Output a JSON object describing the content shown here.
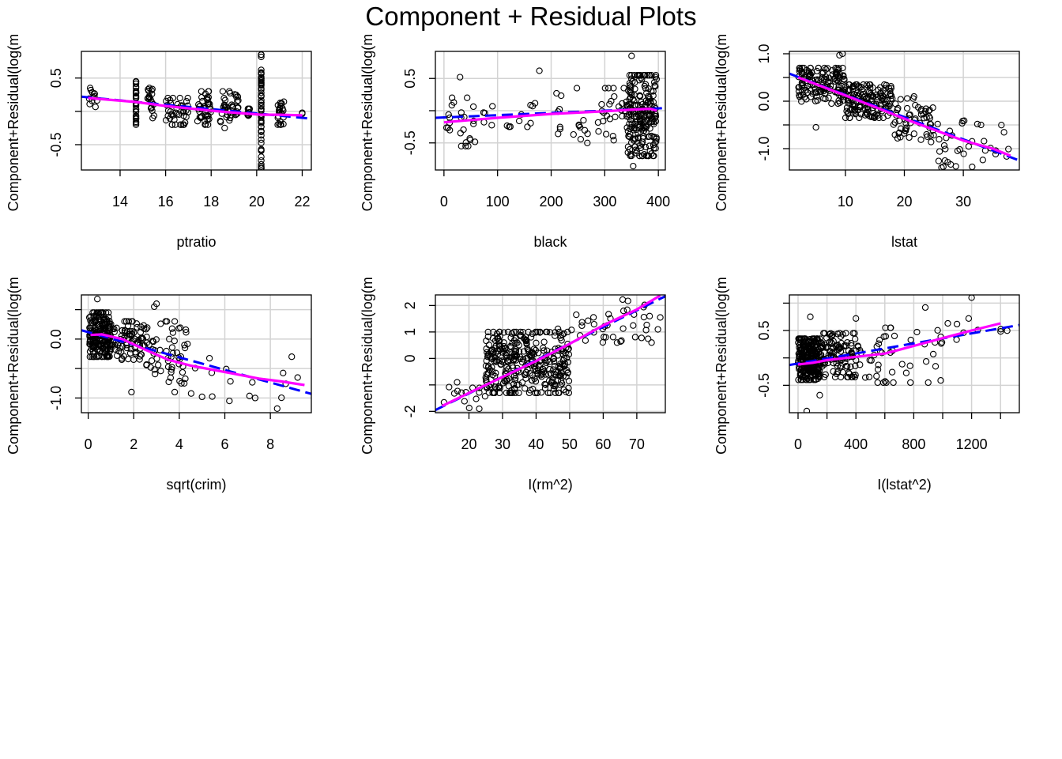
{
  "title": "Component + Residual Plots",
  "chart_data": {
    "type": "scatter",
    "title": "Component + Residual Plots",
    "layout_grid": "2 rows x 3 columns",
    "colors": {
      "points": "#000000",
      "linear_fit": "#0000ff",
      "smooth": "#ff00ff",
      "grid": "#d3d3d3"
    },
    "panels": [
      {
        "id": "ptratio",
        "xlabel": "ptratio",
        "ylabel": "Component+Residual(log(m",
        "xlim": [
          12.3,
          22.4
        ],
        "ylim": [
          -0.88,
          0.9
        ],
        "xticks": [
          14,
          16,
          18,
          20,
          22
        ],
        "xtick_labels": [
          "14",
          "16",
          "18",
          "20",
          "22"
        ],
        "yticks": [
          -0.5,
          0,
          0.5
        ],
        "ytick_labels": [
          "-0.5",
          "",
          "0.5"
        ],
        "grid": true,
        "linear_fit": [
          [
            12.3,
            0.22
          ],
          [
            22.4,
            -0.11
          ]
        ],
        "smooth": [
          [
            12.6,
            0.2
          ],
          [
            14.7,
            0.14
          ],
          [
            16,
            0.08
          ],
          [
            18,
            0.01
          ],
          [
            19,
            -0.02
          ],
          [
            20.2,
            -0.05
          ],
          [
            21,
            -0.05
          ],
          [
            22,
            -0.06
          ]
        ],
        "point_groups": [
          {
            "x": [
              12.6,
              13.0
            ],
            "yrange": [
              0.0,
              0.35
            ],
            "n": 12
          },
          {
            "x": [
              14.7,
              14.7
            ],
            "yrange": [
              -0.2,
              0.45
            ],
            "n": 30
          },
          {
            "x": [
              15.2,
              15.5
            ],
            "yrange": [
              -0.1,
              0.35
            ],
            "n": 20
          },
          {
            "x": [
              16.0,
              17.0
            ],
            "yrange": [
              -0.2,
              0.2
            ],
            "n": 40
          },
          {
            "x": [
              17.4,
              18.0
            ],
            "yrange": [
              -0.2,
              0.3
            ],
            "n": 40
          },
          {
            "x": [
              18.4,
              19.2
            ],
            "yrange": [
              -0.25,
              0.3
            ],
            "n": 40
          },
          {
            "x": [
              19.6,
              19.7
            ],
            "yrange": [
              -0.15,
              0.15
            ],
            "n": 10
          },
          {
            "x": [
              20.2,
              20.2
            ],
            "yrange": [
              -0.85,
              0.85
            ],
            "n": 60
          },
          {
            "x": [
              20.9,
              21.2
            ],
            "yrange": [
              -0.2,
              0.15
            ],
            "n": 25
          },
          {
            "x": [
              22.0,
              22.0
            ],
            "yrange": [
              -0.05,
              0.0
            ],
            "n": 2
          }
        ]
      },
      {
        "id": "black",
        "xlabel": "black",
        "ylabel": "Component+Residual(log(m",
        "xlim": [
          -16,
          413
        ],
        "ylim": [
          -0.92,
          0.92
        ],
        "xticks": [
          0,
          100,
          200,
          300,
          400
        ],
        "xtick_labels": [
          "0",
          "100",
          "200",
          "300",
          "400"
        ],
        "yticks": [
          -0.5,
          0,
          0.5
        ],
        "ytick_labels": [
          "-0.5",
          "",
          "0.5"
        ],
        "grid": true,
        "linear_fit": [
          [
            -16,
            -0.11
          ],
          [
            413,
            0.04
          ]
        ],
        "smooth": [
          [
            0,
            -0.18
          ],
          [
            100,
            -0.11
          ],
          [
            200,
            -0.05
          ],
          [
            300,
            -0.01
          ],
          [
            360,
            0.02
          ],
          [
            385,
            0.03
          ],
          [
            397,
            0.0
          ]
        ],
        "point_groups": [
          {
            "x": [
              0,
              60
            ],
            "yrange": [
              -0.55,
              0.2
            ],
            "n": 25
          },
          {
            "x": [
              70,
              180
            ],
            "yrange": [
              -0.25,
              0.2
            ],
            "n": 15
          },
          {
            "x": [
              200,
              340
            ],
            "yrange": [
              -0.5,
              0.35
            ],
            "n": 40
          },
          {
            "x": [
              340,
              397
            ],
            "yrange": [
              -0.7,
              0.55
            ],
            "n": 220
          }
        ],
        "outliers": [
          [
            30,
            0.52
          ],
          [
            178,
            0.62
          ],
          [
            210,
            0.27
          ],
          [
            350,
            0.85
          ],
          [
            365,
            1.0
          ],
          [
            353,
            -0.86
          ],
          [
            347,
            -0.6
          ]
        ]
      },
      {
        "id": "lstat",
        "xlabel": "lstat",
        "ylabel": "Component+Residual(log(m",
        "xlim": [
          0.5,
          39.5
        ],
        "ylim": [
          -1.45,
          1.05
        ],
        "xticks": [
          10,
          20,
          30
        ],
        "xtick_labels": [
          "10",
          "20",
          "30"
        ],
        "yticks": [
          -1.0,
          -0.5,
          0.0,
          0.5,
          1.0
        ],
        "ytick_labels": [
          "-1.0",
          "",
          "0.0",
          "",
          "1.0"
        ],
        "grid": true,
        "linear_fit": [
          [
            0.5,
            0.58
          ],
          [
            39.5,
            -1.25
          ]
        ],
        "smooth": [
          [
            2,
            0.5
          ],
          [
            10,
            0.12
          ],
          [
            15,
            -0.12
          ],
          [
            20,
            -0.37
          ],
          [
            25,
            -0.6
          ],
          [
            30,
            -0.83
          ],
          [
            35,
            -1.0
          ],
          [
            38,
            -1.15
          ]
        ],
        "point_groups": [
          {
            "x": [
              2,
              10
            ],
            "yrange": [
              -0.05,
              0.7
            ],
            "n": 150
          },
          {
            "x": [
              10,
              18
            ],
            "yrange": [
              -0.35,
              0.35
            ],
            "n": 150
          },
          {
            "x": [
              18,
              25
            ],
            "yrange": [
              -0.9,
              0.1
            ],
            "n": 60
          },
          {
            "x": [
              25,
              38
            ],
            "yrange": [
              -1.4,
              -0.4
            ],
            "n": 35
          }
        ],
        "outliers": [
          [
            9,
            0.97
          ],
          [
            9.5,
            1.0
          ],
          [
            5,
            -0.55
          ],
          [
            33,
            -0.5
          ]
        ]
      },
      {
        "id": "sqrt_crim",
        "xlabel": "sqrt(crim)",
        "ylabel": "Component+Residual(log(m",
        "xlim": [
          -0.3,
          9.8
        ],
        "ylim": [
          -1.25,
          0.75
        ],
        "xticks": [
          0,
          2,
          4,
          6,
          8
        ],
        "xtick_labels": [
          "0",
          "2",
          "4",
          "6",
          "8"
        ],
        "yticks": [
          -1.0,
          -0.5,
          0.0,
          0.5
        ],
        "ytick_labels": [
          "-1.0",
          "",
          "0.0",
          ""
        ],
        "grid": true,
        "linear_fit": [
          [
            -0.3,
            0.15
          ],
          [
            9.8,
            -0.93
          ]
        ],
        "smooth": [
          [
            0.1,
            0.07
          ],
          [
            0.6,
            0.08
          ],
          [
            1.5,
            0.0
          ],
          [
            2.5,
            -0.18
          ],
          [
            3.5,
            -0.35
          ],
          [
            4.5,
            -0.45
          ],
          [
            6,
            -0.56
          ],
          [
            7.5,
            -0.67
          ],
          [
            8.5,
            -0.72
          ],
          [
            9.5,
            -0.78
          ]
        ],
        "point_groups": [
          {
            "x": [
              0.05,
              1.0
            ],
            "yrange": [
              -0.3,
              0.45
            ],
            "n": 200
          },
          {
            "x": [
              1.0,
              2.5
            ],
            "yrange": [
              -0.35,
              0.3
            ],
            "n": 80
          },
          {
            "x": [
              2.5,
              4.5
            ],
            "yrange": [
              -0.75,
              0.3
            ],
            "n": 60
          },
          {
            "x": [
              4.5,
              9.5
            ],
            "yrange": [
              -1.0,
              -0.3
            ],
            "n": 15
          }
        ],
        "outliers": [
          [
            0.4,
            0.68
          ],
          [
            3,
            0.6
          ],
          [
            2.9,
            0.55
          ],
          [
            1.9,
            -0.9
          ],
          [
            3.8,
            -0.9
          ],
          [
            8.3,
            -1.18
          ],
          [
            6.2,
            -1.05
          ],
          [
            5.0,
            -0.98
          ]
        ]
      },
      {
        "id": "rm_sq",
        "xlabel": "I(rm^2)",
        "ylabel": "Component+Residual(log(m",
        "xlim": [
          10,
          78.5
        ],
        "ylim": [
          -2.05,
          2.4
        ],
        "xticks": [
          20,
          30,
          40,
          50,
          60,
          70
        ],
        "xtick_labels": [
          "20",
          "30",
          "40",
          "50",
          "60",
          "70"
        ],
        "yticks": [
          -2,
          -1,
          0,
          1,
          2
        ],
        "ytick_labels": [
          "-2",
          "",
          "0",
          "1",
          "2"
        ],
        "grid": true,
        "linear_fit": [
          [
            10,
            -1.95
          ],
          [
            78.5,
            2.35
          ]
        ],
        "smooth": [
          [
            12,
            -1.8
          ],
          [
            20,
            -1.3
          ],
          [
            30,
            -0.7
          ],
          [
            40,
            -0.1
          ],
          [
            50,
            0.55
          ],
          [
            60,
            1.25
          ],
          [
            70,
            1.85
          ],
          [
            77,
            2.38
          ]
        ],
        "point_groups": [
          {
            "x": [
              12,
              25
            ],
            "yrange": [
              -1.9,
              -0.9
            ],
            "n": 15
          },
          {
            "x": [
              25,
              50
            ],
            "yrange": [
              -1.3,
              1.0
            ],
            "n": 350
          },
          {
            "x": [
              50,
              77
            ],
            "yrange": [
              0.6,
              2.3
            ],
            "n": 40
          }
        ],
        "outliers": [
          [
            38.5,
            0.8
          ],
          [
            46.5,
            1.12
          ],
          [
            77,
            1.55
          ],
          [
            40.5,
            -0.6
          ]
        ]
      },
      {
        "id": "lstat_sq",
        "xlabel": "I(lstat^2)",
        "ylabel": "Component+Residual(log(m",
        "xlim": [
          -60,
          1530
        ],
        "ylim": [
          -1.0,
          1.15
        ],
        "xticks": [
          0,
          200,
          400,
          600,
          800,
          1000,
          1200,
          1400
        ],
        "xtick_labels": [
          "0",
          "",
          "400",
          "",
          "800",
          "",
          "1200",
          ""
        ],
        "yticks": [
          -0.5,
          0,
          0.5,
          1.0
        ],
        "ytick_labels": [
          "-0.5",
          "",
          "0.5",
          ""
        ],
        "grid": true,
        "linear_fit": [
          [
            -60,
            -0.13
          ],
          [
            1530,
            0.6
          ]
        ],
        "smooth": [
          [
            0,
            -0.12
          ],
          [
            100,
            -0.09
          ],
          [
            200,
            -0.04
          ],
          [
            400,
            0.02
          ],
          [
            600,
            0.08
          ],
          [
            800,
            0.22
          ],
          [
            1000,
            0.36
          ],
          [
            1200,
            0.5
          ],
          [
            1400,
            0.63
          ]
        ],
        "point_groups": [
          {
            "x": [
              0,
              150
            ],
            "yrange": [
              -0.4,
              0.35
            ],
            "n": 250
          },
          {
            "x": [
              150,
              400
            ],
            "yrange": [
              -0.35,
              0.45
            ],
            "n": 120
          },
          {
            "x": [
              400,
              1000
            ],
            "yrange": [
              -0.45,
              0.55
            ],
            "n": 50
          },
          {
            "x": [
              1000,
              1450
            ],
            "yrange": [
              0.3,
              0.8
            ],
            "n": 8
          }
        ],
        "outliers": [
          [
            60,
            -0.97
          ],
          [
            150,
            -0.68
          ],
          [
            1200,
            1.1
          ],
          [
            880,
            0.92
          ],
          [
            85,
            0.75
          ],
          [
            400,
            0.72
          ],
          [
            1180,
            0.72
          ]
        ]
      }
    ]
  }
}
